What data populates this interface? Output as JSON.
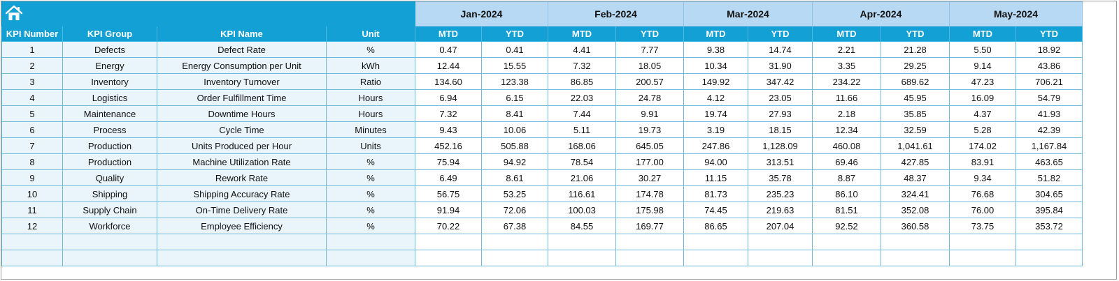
{
  "months": [
    "Jan-2024",
    "Feb-2024",
    "Mar-2024",
    "Apr-2024",
    "May-2024"
  ],
  "headers": {
    "kpi_number": "KPI Number",
    "kpi_group": "KPI Group",
    "kpi_name": "KPI Name",
    "unit": "Unit",
    "mtd": "MTD",
    "ytd": "YTD"
  },
  "icons": {
    "home": "home-icon"
  },
  "colors": {
    "banner": "#13a0d4",
    "month_header": "#b7d9f3",
    "label_cell": "#e9f5fb",
    "grid": "#6fb9d9"
  },
  "rows": [
    {
      "num": "1",
      "group": "Defects",
      "name": "Defect Rate",
      "unit": "%",
      "vals": [
        "0.47",
        "0.41",
        "4.41",
        "7.77",
        "9.38",
        "14.74",
        "2.21",
        "21.28",
        "5.50",
        "18.92"
      ]
    },
    {
      "num": "2",
      "group": "Energy",
      "name": "Energy Consumption per Unit",
      "unit": "kWh",
      "vals": [
        "12.44",
        "15.55",
        "7.32",
        "18.05",
        "10.34",
        "31.90",
        "3.35",
        "29.25",
        "9.14",
        "43.86"
      ]
    },
    {
      "num": "3",
      "group": "Inventory",
      "name": "Inventory Turnover",
      "unit": "Ratio",
      "vals": [
        "134.60",
        "123.38",
        "86.85",
        "200.57",
        "149.92",
        "347.42",
        "234.22",
        "689.62",
        "47.23",
        "706.21"
      ]
    },
    {
      "num": "4",
      "group": "Logistics",
      "name": "Order Fulfillment Time",
      "unit": "Hours",
      "vals": [
        "6.94",
        "6.15",
        "22.03",
        "24.78",
        "4.12",
        "23.05",
        "11.66",
        "45.95",
        "16.09",
        "54.79"
      ]
    },
    {
      "num": "5",
      "group": "Maintenance",
      "name": "Downtime Hours",
      "unit": "Hours",
      "vals": [
        "7.32",
        "8.41",
        "7.44",
        "9.91",
        "19.74",
        "27.93",
        "2.18",
        "35.85",
        "4.37",
        "41.93"
      ]
    },
    {
      "num": "6",
      "group": "Process",
      "name": "Cycle Time",
      "unit": "Minutes",
      "vals": [
        "9.43",
        "10.06",
        "5.11",
        "19.73",
        "3.19",
        "18.15",
        "12.34",
        "32.59",
        "5.28",
        "42.39"
      ]
    },
    {
      "num": "7",
      "group": "Production",
      "name": "Units Produced per Hour",
      "unit": "Units",
      "vals": [
        "452.16",
        "505.88",
        "168.06",
        "645.05",
        "247.86",
        "1,128.09",
        "460.08",
        "1,041.61",
        "174.02",
        "1,167.84"
      ]
    },
    {
      "num": "8",
      "group": "Production",
      "name": "Machine Utilization Rate",
      "unit": "%",
      "vals": [
        "75.94",
        "94.92",
        "78.54",
        "177.00",
        "94.00",
        "313.51",
        "69.46",
        "427.85",
        "83.91",
        "463.65"
      ]
    },
    {
      "num": "9",
      "group": "Quality",
      "name": "Rework Rate",
      "unit": "%",
      "vals": [
        "6.49",
        "8.61",
        "21.06",
        "30.27",
        "11.15",
        "35.78",
        "8.87",
        "48.37",
        "9.34",
        "51.82"
      ]
    },
    {
      "num": "10",
      "group": "Shipping",
      "name": "Shipping Accuracy Rate",
      "unit": "%",
      "vals": [
        "56.75",
        "53.25",
        "116.61",
        "174.78",
        "81.73",
        "235.23",
        "86.10",
        "324.41",
        "76.68",
        "304.65"
      ]
    },
    {
      "num": "11",
      "group": "Supply Chain",
      "name": "On-Time Delivery Rate",
      "unit": "%",
      "vals": [
        "91.94",
        "72.06",
        "100.03",
        "175.98",
        "74.45",
        "219.63",
        "81.51",
        "352.08",
        "76.00",
        "395.84"
      ]
    },
    {
      "num": "12",
      "group": "Workforce",
      "name": "Employee Efficiency",
      "unit": "%",
      "vals": [
        "70.22",
        "67.38",
        "84.55",
        "169.77",
        "86.65",
        "207.04",
        "92.52",
        "360.58",
        "73.75",
        "353.72"
      ]
    }
  ],
  "empty_rows": 2
}
